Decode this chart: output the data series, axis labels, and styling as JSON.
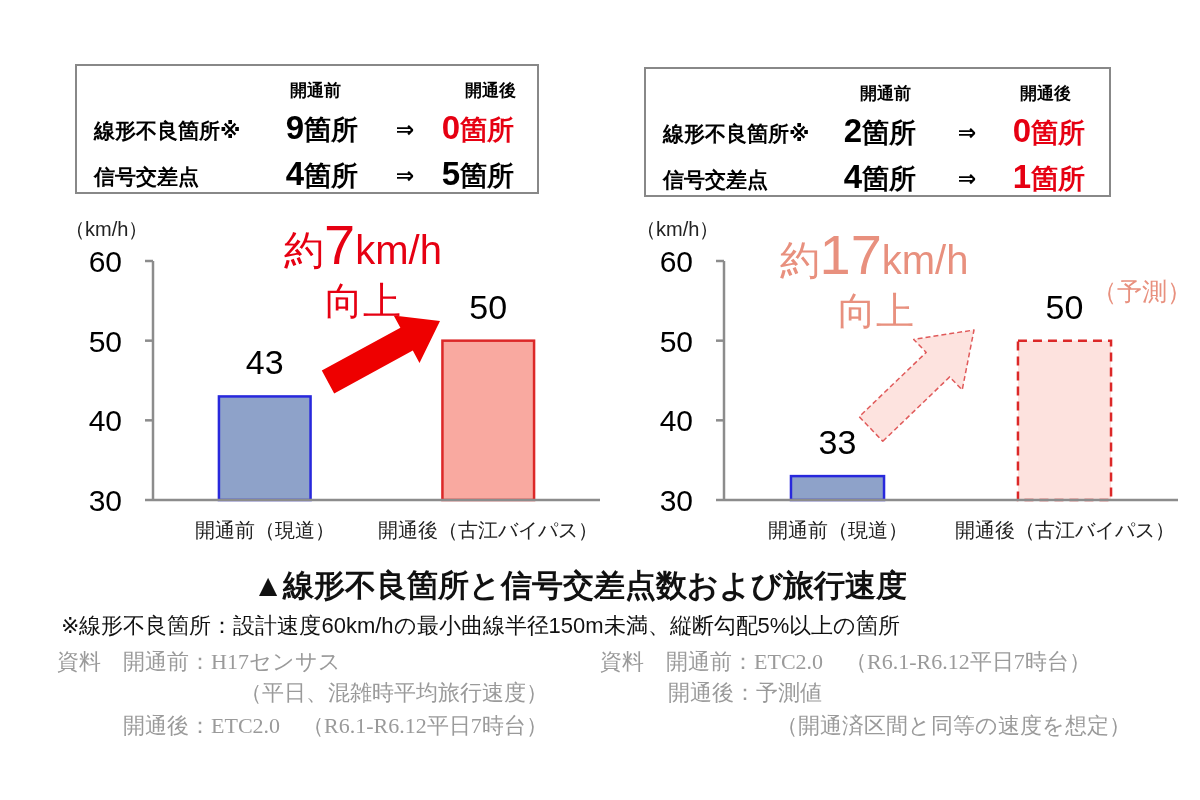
{
  "chart_data": [
    {
      "type": "other",
      "categories": [
        "線形不良箇所※",
        "信号交差点"
      ],
      "series": [
        {
          "name": "開通前",
          "values": [
            9,
            4
          ],
          "colors": [
            "#000000",
            "#000000"
          ],
          "value_labels": [
            "9箇所",
            "4箇所"
          ]
        },
        {
          "name": "開通後",
          "values": [
            0,
            5
          ],
          "colors": [
            "#e60012",
            "#000000"
          ],
          "value_labels": [
            "0箇所",
            "5箇所"
          ]
        }
      ],
      "annotations": [
        "⇒",
        "⇒"
      ]
    },
    {
      "type": "other",
      "categories": [
        "線形不良箇所※",
        "信号交差点"
      ],
      "series": [
        {
          "name": "開通前",
          "values": [
            2,
            4
          ],
          "colors": [
            "#000000",
            "#000000"
          ],
          "value_labels": [
            "2箇所",
            "4箇所"
          ]
        },
        {
          "name": "開通後",
          "values": [
            0,
            1
          ],
          "colors": [
            "#e60012",
            "#e60012"
          ],
          "value_labels": [
            "0箇所",
            "1箇所"
          ]
        }
      ],
      "annotations": [
        "⇒",
        "⇒"
      ]
    },
    {
      "type": "bar",
      "categories": [
        "開通前（現道）",
        "開通後（古江バイパス）"
      ],
      "series": [
        {
          "color": "#8ea2c9",
          "values": [
            43,
            null
          ]
        },
        {
          "color": "#f9a9a0",
          "values": [
            null,
            50
          ]
        }
      ],
      "ylim": [
        30,
        60
      ],
      "yticks": [
        30,
        40,
        50,
        60
      ],
      "ylabel": "（km/h）",
      "data_labels": true,
      "annotations": [
        "約7km/h",
        "向上"
      ]
    },
    {
      "type": "bar",
      "categories": [
        "開通前（現道）",
        "開通後（古江バイパス）"
      ],
      "series": [
        {
          "color": "#8ea2c9",
          "values": [
            33,
            null
          ]
        },
        {
          "color": "#fde2de",
          "line_style": "dashed",
          "values": [
            null,
            50
          ]
        }
      ],
      "ylim": [
        30,
        60
      ],
      "yticks": [
        30,
        40,
        50,
        60
      ],
      "ylabel": "（km/h）",
      "data_labels": true,
      "annotations": [
        "約17km/h",
        "向上",
        "（予測）"
      ]
    },
    {
      "type": "other",
      "title": "▲線形不良箇所と信号交差点数および旅行速度",
      "annotations": [
        "※線形不良箇所：設計速度60km/hの最小曲線半径150m未満、縦断勾配5%以上の箇所",
        "資料　開通前：H17センサス",
        "（平日、混雑時平均旅行速度）",
        "開通後：ETC2.0　（R6.1-R6.12平日7時台）",
        "資料　開通前：ETC2.0　（R6.1-R6.12平日7時台）",
        "開通後：予測値",
        "（開通済区間と同等の速度を想定）"
      ]
    }
  ]
}
